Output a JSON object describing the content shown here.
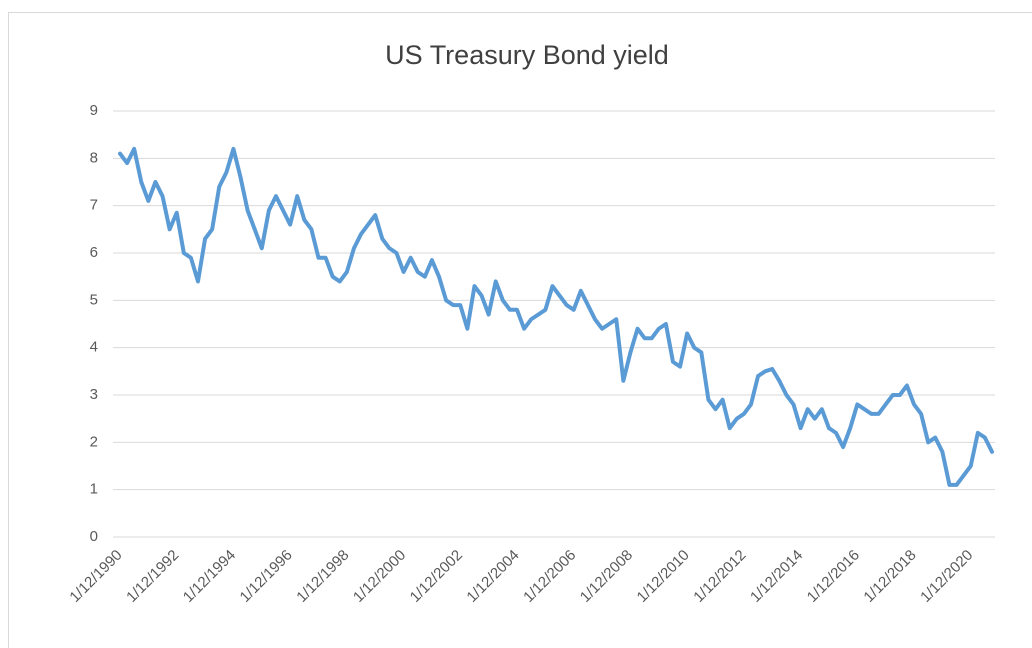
{
  "chart_data": {
    "type": "line",
    "title": "US Treasury Bond yield",
    "categories": [
      "1/12/1990",
      null,
      null,
      null,
      null,
      null,
      null,
      null,
      "1/12/1992",
      null,
      null,
      null,
      null,
      null,
      null,
      null,
      "1/12/1994",
      null,
      null,
      null,
      null,
      null,
      null,
      null,
      "1/12/1996",
      null,
      null,
      null,
      null,
      null,
      null,
      null,
      "1/12/1998",
      null,
      null,
      null,
      null,
      null,
      null,
      null,
      "1/12/2000",
      null,
      null,
      null,
      null,
      null,
      null,
      null,
      "1/12/2002",
      null,
      null,
      null,
      null,
      null,
      null,
      null,
      "1/12/2004",
      null,
      null,
      null,
      null,
      null,
      null,
      null,
      "1/12/2006",
      null,
      null,
      null,
      null,
      null,
      null,
      null,
      "1/12/2008",
      null,
      null,
      null,
      null,
      null,
      null,
      null,
      "1/12/2010",
      null,
      null,
      null,
      null,
      null,
      null,
      null,
      "1/12/2012",
      null,
      null,
      null,
      null,
      null,
      null,
      null,
      "1/12/2014",
      null,
      null,
      null,
      null,
      null,
      null,
      null,
      "1/12/2016",
      null,
      null,
      null,
      null,
      null,
      null,
      null,
      "1/12/2018",
      null,
      null,
      null,
      null,
      null,
      null,
      null,
      "1/12/2020",
      null,
      null,
      null
    ],
    "values": [
      8.1,
      7.9,
      8.2,
      7.5,
      7.1,
      7.5,
      7.2,
      6.5,
      6.85,
      6.0,
      5.9,
      5.4,
      6.3,
      6.5,
      7.4,
      7.7,
      8.2,
      7.6,
      6.9,
      6.5,
      6.1,
      6.9,
      7.2,
      6.9,
      6.6,
      7.2,
      6.7,
      6.5,
      5.9,
      5.9,
      5.5,
      5.4,
      5.6,
      6.1,
      6.4,
      6.6,
      6.8,
      6.3,
      6.1,
      6.0,
      5.6,
      5.9,
      5.6,
      5.5,
      5.85,
      5.5,
      5.0,
      4.9,
      4.9,
      4.4,
      5.3,
      5.1,
      4.7,
      5.4,
      5.0,
      4.8,
      4.8,
      4.4,
      4.6,
      4.7,
      4.8,
      5.3,
      5.1,
      4.9,
      4.8,
      5.2,
      4.9,
      4.6,
      4.4,
      4.5,
      4.6,
      3.3,
      3.9,
      4.4,
      4.2,
      4.2,
      4.4,
      4.5,
      3.7,
      3.6,
      4.3,
      4.0,
      3.9,
      2.9,
      2.7,
      2.9,
      2.3,
      2.5,
      2.6,
      2.8,
      3.4,
      3.5,
      3.55,
      3.3,
      3.0,
      2.8,
      2.3,
      2.7,
      2.5,
      2.7,
      2.3,
      2.2,
      1.9,
      2.3,
      2.8,
      2.7,
      2.6,
      2.6,
      2.8,
      3.0,
      3.0,
      3.2,
      2.8,
      2.6,
      2.0,
      2.1,
      1.8,
      1.1,
      1.1,
      1.3,
      1.5,
      2.2,
      2.1,
      1.8
    ],
    "color": "#5b9bd5",
    "ylim": [
      0,
      9
    ],
    "yticks": [
      0,
      1,
      2,
      3,
      4,
      5,
      6,
      7,
      8,
      9
    ],
    "grid": true
  }
}
